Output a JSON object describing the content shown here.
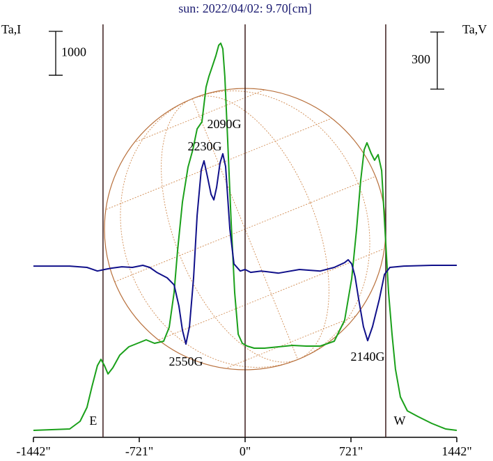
{
  "chart_data": {
    "type": "line",
    "title": "sun: 2022/04/02: 9.70[cm]",
    "ylabel": "Ta,I",
    "y2label": "Ta,V",
    "xlim": [
      -1442,
      1442
    ],
    "xticks": [
      {
        "value": -1442,
        "label": "-1442\""
      },
      {
        "value": -721,
        "label": "-721\""
      },
      {
        "value": 0,
        "label": "0\""
      },
      {
        "value": 721,
        "label": "721\""
      },
      {
        "value": 1442,
        "label": "1442\""
      }
    ],
    "ylim": [
      -150,
      9250
    ],
    "y2lim": [
      -900,
      1270
    ],
    "scale_bars": [
      {
        "value": 1000,
        "axis": "y"
      },
      {
        "value": 300,
        "axis": "y2"
      }
    ],
    "markers": [
      {
        "label": "E",
        "x": -968
      },
      {
        "x": 0
      },
      {
        "label": "W",
        "x": 958
      }
    ],
    "annotations": [
      {
        "text": "2090G"
      },
      {
        "text": "2230G"
      },
      {
        "text": "2550G"
      },
      {
        "text": "2140G"
      }
    ],
    "series": [
      {
        "name": "I",
        "color": "#1aa01a",
        "axis": "y",
        "x": [
          -1442,
          -1195,
          -1124,
          -1077,
          -1043,
          -1006,
          -982,
          -958,
          -934,
          -901,
          -854,
          -792,
          -721,
          -674,
          -617,
          -555,
          -517,
          -484,
          -460,
          -427,
          -389,
          -356,
          -327,
          -294,
          -266,
          -247,
          -223,
          -199,
          -180,
          -166,
          -152,
          -138,
          -119,
          -95,
          -71,
          -47,
          -19,
          14,
          62,
          133,
          228,
          323,
          417,
          512,
          607,
          678,
          726,
          759,
          787,
          811,
          830,
          858,
          882,
          906,
          930,
          953,
          977,
          1001,
          1024,
          1058,
          1105,
          1176,
          1271,
          1366,
          1442
        ],
        "values": [
          9,
          40,
          215,
          532,
          1007,
          1483,
          1625,
          1483,
          1292,
          1435,
          1720,
          1911,
          2006,
          2069,
          1990,
          2037,
          2354,
          3147,
          4098,
          5207,
          5999,
          6396,
          6871,
          7030,
          7822,
          8060,
          8298,
          8536,
          8774,
          8821,
          8694,
          8060,
          6634,
          4732,
          3147,
          2196,
          1990,
          1926,
          1879,
          1879,
          1911,
          1942,
          1926,
          1926,
          2037,
          2513,
          3464,
          4573,
          5683,
          6396,
          6555,
          6317,
          6158,
          6285,
          5921,
          4573,
          3147,
          2196,
          1403,
          769,
          452,
          326,
          167,
          40,
          9
        ]
      },
      {
        "name": "V",
        "color": "#10108a",
        "axis": "y2",
        "x": [
          -1442,
          -1195,
          -1077,
          -1006,
          -958,
          -911,
          -840,
          -768,
          -697,
          -650,
          -602,
          -531,
          -484,
          -451,
          -427,
          -403,
          -379,
          -351,
          -327,
          -299,
          -280,
          -256,
          -232,
          -213,
          -194,
          -171,
          -152,
          -133,
          -104,
          -76,
          -33,
          0,
          38,
          109,
          228,
          370,
          512,
          607,
          678,
          702,
          726,
          749,
          773,
          806,
          835,
          868,
          915,
          949,
          986,
          1081,
          1271,
          1442
        ],
        "values": [
          0,
          0,
          -7,
          -26,
          -18,
          -11,
          -4,
          -7,
          4,
          -7,
          -33,
          -62,
          -99,
          -209,
          -337,
          -410,
          -318,
          -62,
          267,
          505,
          553,
          468,
          377,
          348,
          414,
          542,
          590,
          523,
          194,
          11,
          -26,
          -18,
          -33,
          -26,
          -37,
          -18,
          -26,
          -7,
          18,
          33,
          11,
          -55,
          -172,
          -318,
          -392,
          -318,
          -172,
          -44,
          -7,
          0,
          4,
          4
        ]
      }
    ]
  }
}
